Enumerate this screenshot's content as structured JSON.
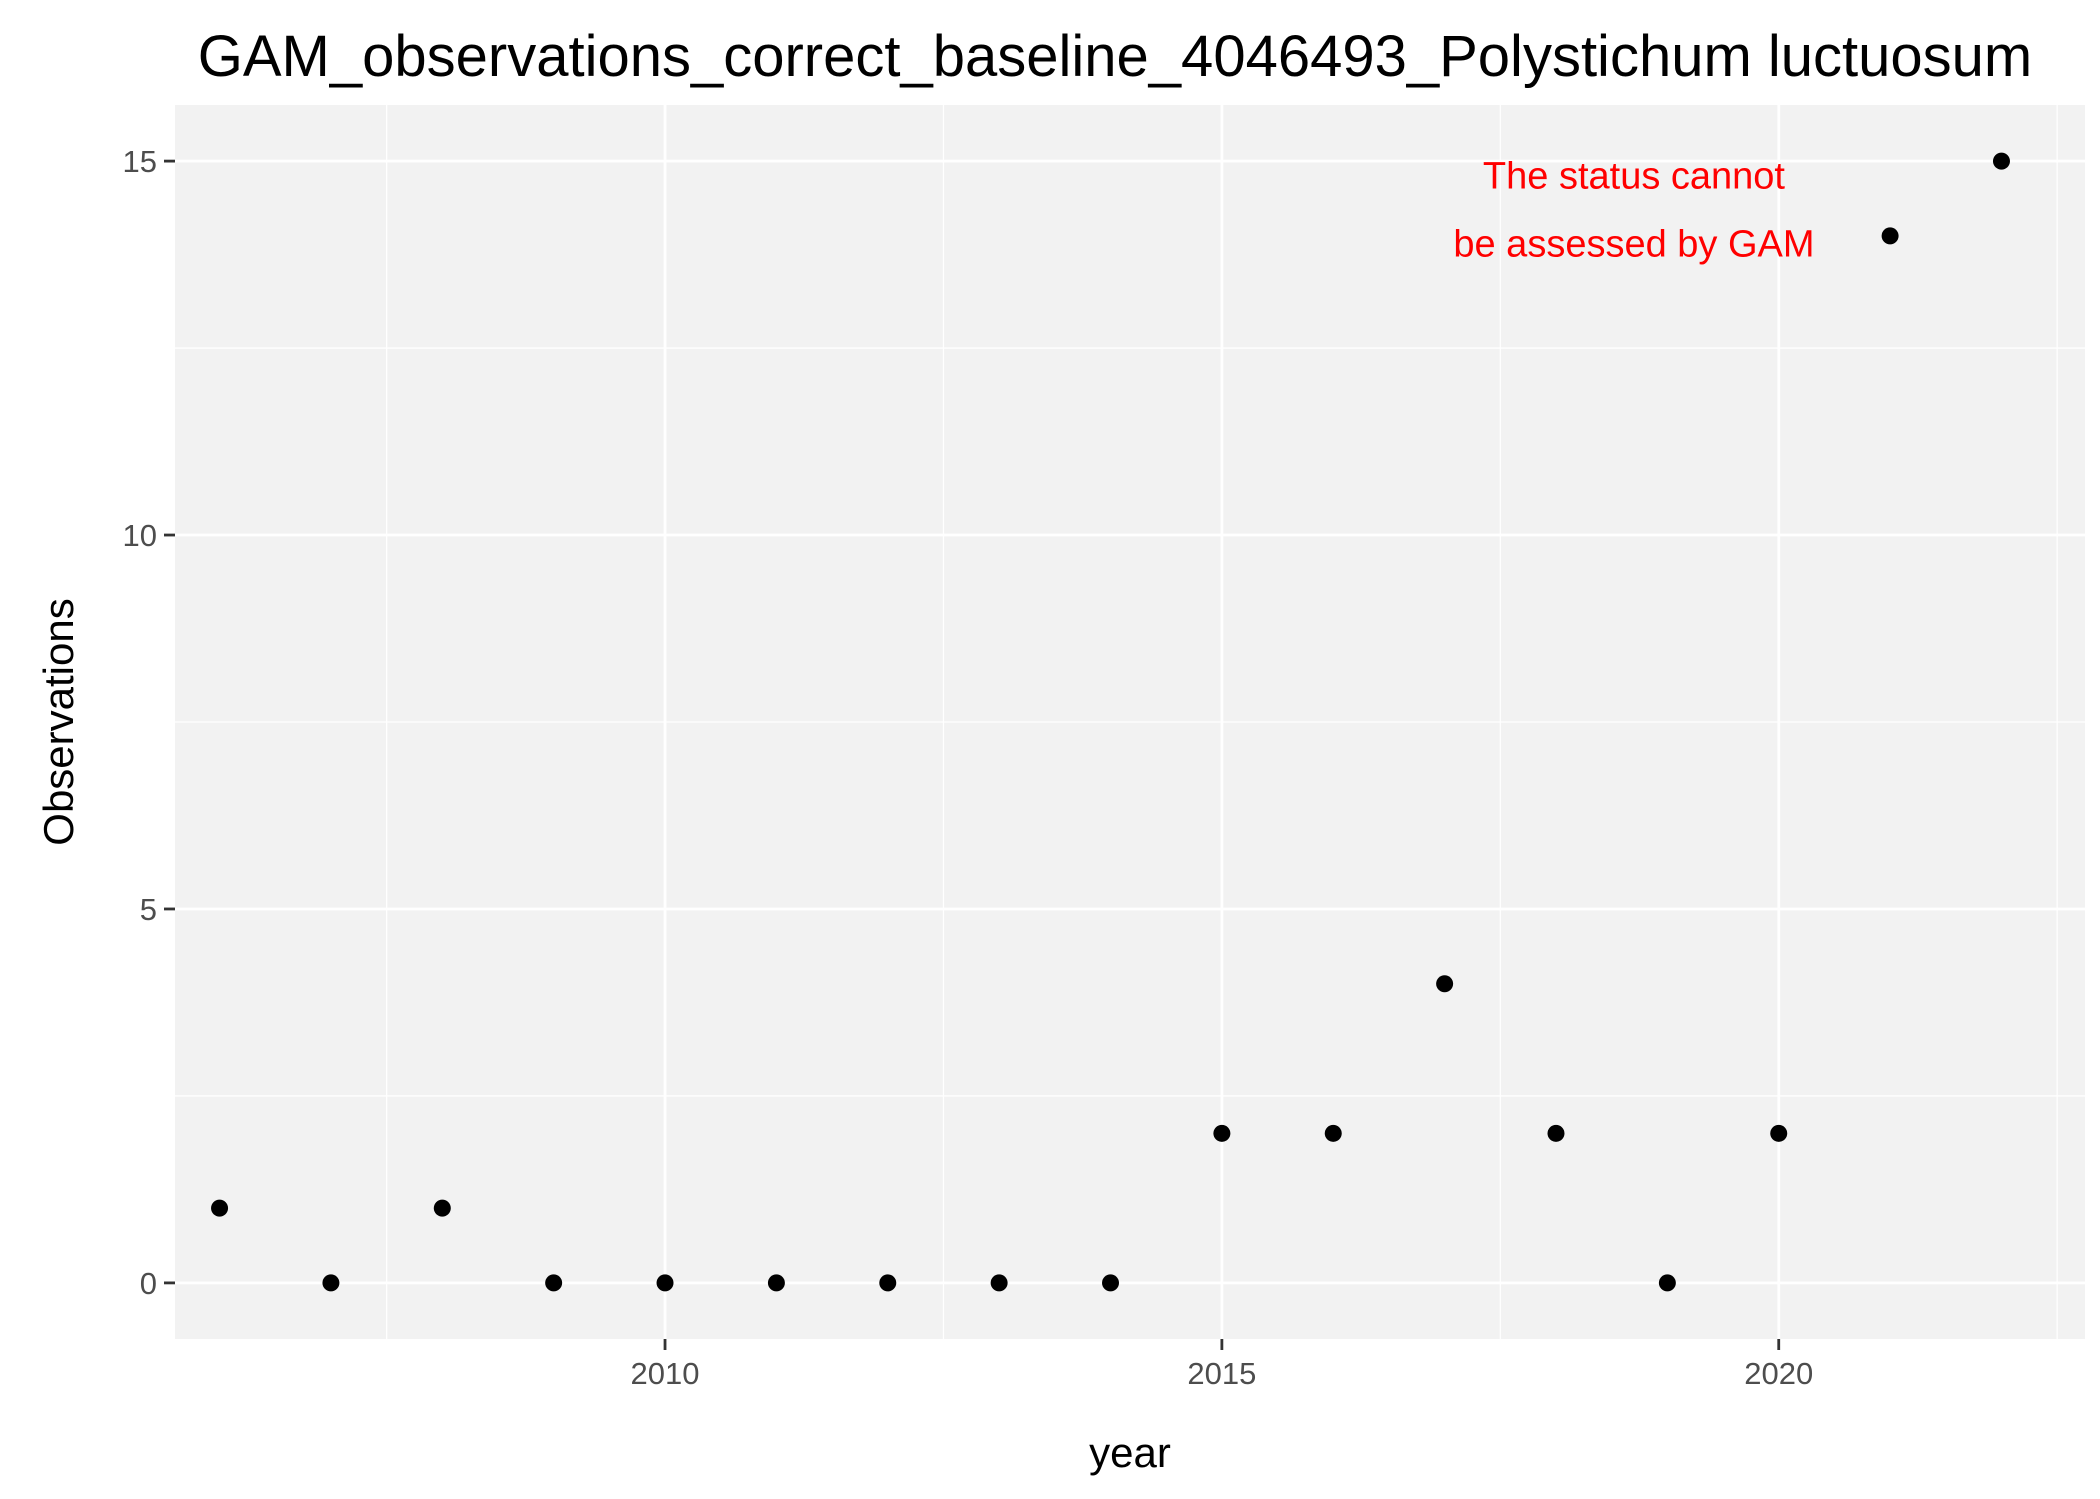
{
  "chart_data": {
    "type": "scatter",
    "title": "GAM_observations_correct_baseline_4046493_Polystichum luctuosum",
    "xlabel": "year",
    "ylabel": "Observations",
    "xlim": [
      2005.6,
      2022.75
    ],
    "ylim": [
      -0.75,
      15.75
    ],
    "x_ticks": [
      2010,
      2015,
      2020
    ],
    "y_ticks": [
      0,
      5,
      10,
      15
    ],
    "x_minor_ticks": [
      2007.5,
      2012.5,
      2017.5,
      2022.5
    ],
    "y_minor_ticks": [
      2.5,
      7.5,
      12.5
    ],
    "grid": true,
    "panel_color": "#f2f2f2",
    "point_color": "#000000",
    "annotation": {
      "lines": [
        "The status cannot",
        "be assessed by GAM"
      ],
      "color": "#ff0000",
      "x": 2018.7,
      "y": 14.3
    },
    "points": [
      {
        "x": 2006,
        "y": 1
      },
      {
        "x": 2007,
        "y": 0
      },
      {
        "x": 2008,
        "y": 1
      },
      {
        "x": 2009,
        "y": 0
      },
      {
        "x": 2010,
        "y": 0
      },
      {
        "x": 2011,
        "y": 0
      },
      {
        "x": 2012,
        "y": 0
      },
      {
        "x": 2013,
        "y": 0
      },
      {
        "x": 2014,
        "y": 0
      },
      {
        "x": 2015,
        "y": 2
      },
      {
        "x": 2016,
        "y": 2
      },
      {
        "x": 2017,
        "y": 4
      },
      {
        "x": 2018,
        "y": 2
      },
      {
        "x": 2019,
        "y": 0
      },
      {
        "x": 2020,
        "y": 2
      },
      {
        "x": 2021,
        "y": 14
      },
      {
        "x": 2022,
        "y": 15
      }
    ]
  }
}
